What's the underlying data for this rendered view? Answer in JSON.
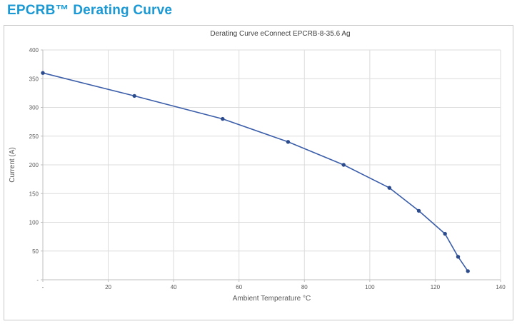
{
  "page": {
    "title": "EPCRB™ Derating Curve",
    "accent_color": "#1A99D5"
  },
  "chart_data": {
    "type": "line",
    "title": "Derating Curve eConnect EPCRB-8-35.6 Ag",
    "xlabel": "Ambient Temperature °C",
    "ylabel": "Current (A)",
    "x": [
      0,
      28,
      55,
      75,
      92,
      106,
      115,
      123,
      127,
      130
    ],
    "y": [
      360,
      320,
      280,
      240,
      200,
      160,
      120,
      80,
      40,
      15
    ],
    "xlim": [
      0,
      140
    ],
    "ylim": [
      0,
      400
    ],
    "x_ticks": [
      0,
      20,
      40,
      60,
      80,
      100,
      120,
      140
    ],
    "x_tick_labels": [
      "-",
      "20",
      "40",
      "60",
      "80",
      "100",
      "120",
      "140"
    ],
    "y_ticks": [
      0,
      50,
      100,
      150,
      200,
      250,
      300,
      350,
      400
    ],
    "y_tick_labels": [
      "-",
      "50",
      "100",
      "150",
      "200",
      "250",
      "300",
      "350",
      "400"
    ],
    "grid": true,
    "legend": "none",
    "colors": {
      "line": "#3A5DA9",
      "marker": "#2C4B8C",
      "gridline": "#DCDCDC",
      "axis": "#BFBFBF",
      "tick_text": "#595959",
      "title_text": "#404040"
    }
  }
}
